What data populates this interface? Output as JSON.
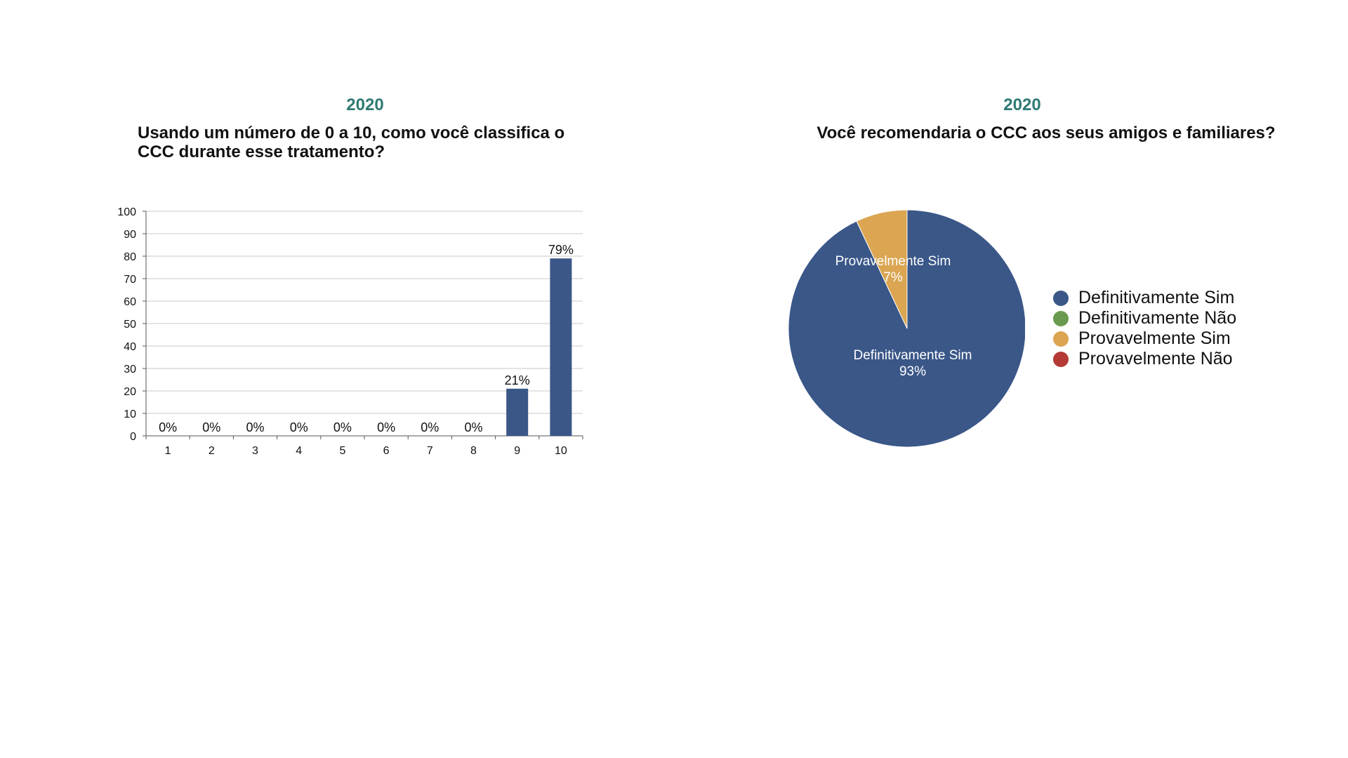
{
  "left_chart": {
    "year": "2020",
    "question": "Usando um número de 0 a 10, como você classifica o CCC durante esse tratamento?"
  },
  "right_chart": {
    "year": "2020",
    "question": "Você recomendaria o CCC aos seus amigos e familiares?"
  },
  "colors": {
    "bar": "#3a5788",
    "definitivamente_sim": "#3a5788",
    "definitivamente_nao": "#6a9a4f",
    "provavelmente_sim": "#dba552",
    "provavelmente_nao": "#b53a35",
    "gridline": "#c8c8c8",
    "year_text": "#2e7a73"
  },
  "chart_data": [
    {
      "type": "bar",
      "title": "Usando um número de 0 a 10, como você classifica o CCC durante esse tratamento?",
      "categories": [
        "1",
        "2",
        "3",
        "4",
        "5",
        "6",
        "7",
        "8",
        "9",
        "10"
      ],
      "values": [
        0,
        0,
        0,
        0,
        0,
        0,
        0,
        0,
        21,
        79
      ],
      "data_labels": [
        "0%",
        "0%",
        "0%",
        "0%",
        "0%",
        "0%",
        "0%",
        "0%",
        "21%",
        "79%"
      ],
      "ylim": [
        0,
        100
      ],
      "yticks": [
        0,
        10,
        20,
        30,
        40,
        50,
        60,
        70,
        80,
        90,
        100
      ],
      "grid": true,
      "xlabel": "",
      "ylabel": ""
    },
    {
      "type": "pie",
      "title": "Você recomendaria o CCC aos seus amigos e familiares?",
      "labels": [
        "Definitivamente Sim",
        "Definitivamente Não",
        "Provavelmente Sim",
        "Provavelmente Não"
      ],
      "values": [
        93,
        0,
        7,
        0
      ],
      "slice_labels": [
        {
          "name": "Definitivamente Sim",
          "pct": "93%"
        },
        {
          "name": "Provavelmente Sim",
          "pct": "7%"
        }
      ],
      "legend_position": "right"
    }
  ]
}
